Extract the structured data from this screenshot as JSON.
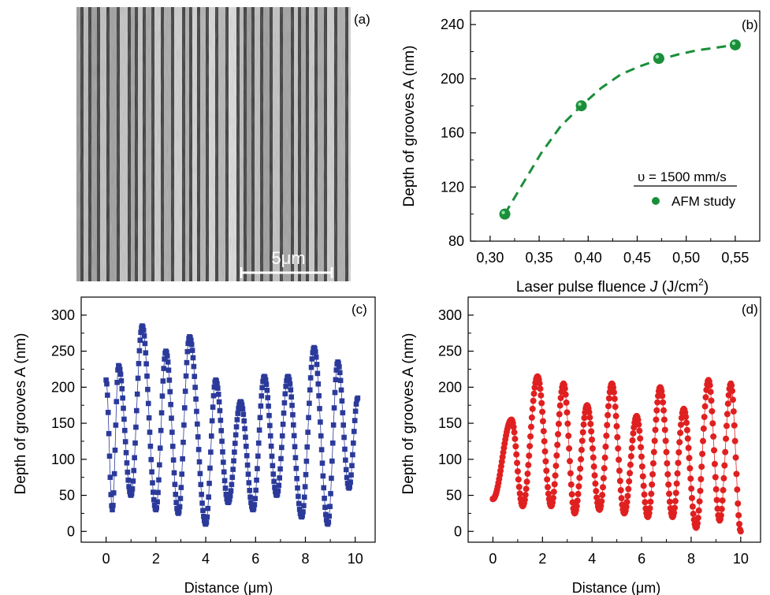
{
  "panel_labels": [
    "(a)",
    "(b)",
    "(c)",
    "(d)"
  ],
  "panel_a": {
    "type": "image",
    "scale_bar_label": "5μm"
  },
  "chart_data": [
    {
      "panel": "(b)",
      "type": "scatter",
      "xlabel": "Laser pulse fluence J (J/cm2)",
      "xlabel_parts": [
        "Laser pulse fluence ",
        "J",
        " (J/cm",
        "2",
        ")"
      ],
      "ylabel": "Depth of grooves A (nm)",
      "xticks": [
        "0,30",
        "0,35",
        "0,40",
        "0,45",
        "0,50",
        "0,55"
      ],
      "xtick_values": [
        0.3,
        0.35,
        0.4,
        0.45,
        0.5,
        0.55
      ],
      "yticks": [
        80,
        120,
        160,
        200,
        240
      ],
      "xlim": [
        0.28,
        0.575
      ],
      "ylim": [
        80,
        250
      ],
      "legend": {
        "position": "right",
        "title": "υ = 1500 mm/s",
        "entry": "AFM study"
      },
      "series": [
        {
          "name": "AFM study",
          "x": [
            0.315,
            0.393,
            0.472,
            0.55
          ],
          "y": [
            100,
            180,
            215,
            225
          ]
        }
      ],
      "fit_curve": {
        "style": "dashed",
        "x": [
          0.315,
          0.333,
          0.352,
          0.372,
          0.393,
          0.413,
          0.433,
          0.452,
          0.472,
          0.492,
          0.511,
          0.531,
          0.55
        ],
        "y": [
          100,
          122,
          145,
          165,
          180,
          193,
          203,
          209,
          214,
          218,
          221,
          223,
          225
        ]
      },
      "colors": {
        "series": "#1a8f3a",
        "fit": "#1a8f3a",
        "axes": "#000000"
      }
    },
    {
      "panel": "(c)",
      "type": "scatter",
      "xlabel": "Distance (μm)",
      "ylabel": "Depth of grooves A (nm)",
      "xticks": [
        0,
        2,
        4,
        6,
        8,
        10
      ],
      "yticks": [
        0,
        50,
        100,
        150,
        200,
        250,
        300
      ],
      "xlim": [
        -1,
        10.8
      ],
      "ylim": [
        -15,
        325
      ],
      "marker": "square",
      "series": [
        {
          "x": [
            0,
            0.5,
            1.45,
            2.4,
            3.35,
            4.4,
            5.4,
            6.35,
            7.3,
            8.35,
            9.3,
            10.1
          ],
          "y": [
            210,
            230,
            285,
            250,
            270,
            210,
            180,
            215,
            215,
            255,
            235,
            185
          ],
          "minima_x": [
            0.25,
            1.0,
            2.0,
            2.9,
            4.0,
            4.9,
            5.9,
            6.85,
            7.85,
            8.9,
            9.75
          ],
          "minima_y": [
            30,
            50,
            30,
            25,
            10,
            40,
            30,
            50,
            20,
            10,
            60
          ]
        }
      ],
      "colors": {
        "series": "#2b3a9a"
      }
    },
    {
      "panel": "(d)",
      "type": "scatter",
      "xlabel": "Distance (μm)",
      "ylabel": "Depth of grooves A (nm)",
      "xticks": [
        0,
        2,
        4,
        6,
        8,
        10
      ],
      "yticks": [
        0,
        50,
        100,
        150,
        200,
        250,
        300
      ],
      "xlim": [
        -1,
        10.8
      ],
      "ylim": [
        -15,
        325
      ],
      "marker": "circle",
      "series": [
        {
          "x": [
            0,
            0.75,
            1.8,
            2.85,
            3.8,
            4.8,
            5.8,
            6.75,
            7.7,
            8.7,
            9.6
          ],
          "y": [
            45,
            155,
            215,
            205,
            175,
            205,
            160,
            200,
            170,
            210,
            205
          ],
          "minima_x": [
            0,
            1.2,
            2.35,
            3.3,
            4.3,
            5.3,
            6.25,
            7.25,
            8.2,
            9.15,
            10
          ],
          "minima_y": [
            45,
            35,
            35,
            25,
            30,
            25,
            20,
            20,
            5,
            15,
            0
          ]
        }
      ],
      "colors": {
        "series": "#e02020"
      }
    }
  ]
}
